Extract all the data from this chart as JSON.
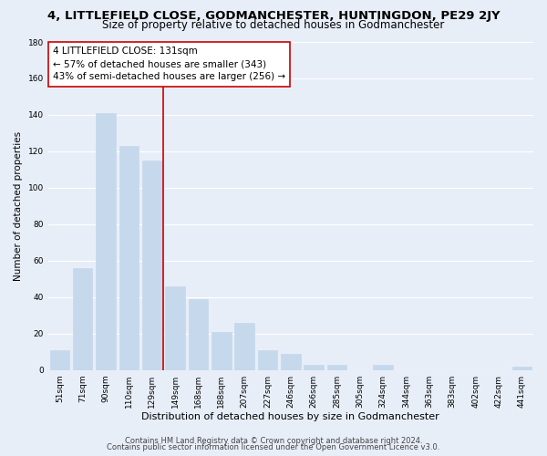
{
  "title": "4, LITTLEFIELD CLOSE, GODMANCHESTER, HUNTINGDON, PE29 2JY",
  "subtitle": "Size of property relative to detached houses in Godmanchester",
  "xlabel": "Distribution of detached houses by size in Godmanchester",
  "ylabel": "Number of detached properties",
  "categories": [
    "51sqm",
    "71sqm",
    "90sqm",
    "110sqm",
    "129sqm",
    "149sqm",
    "168sqm",
    "188sqm",
    "207sqm",
    "227sqm",
    "246sqm",
    "266sqm",
    "285sqm",
    "305sqm",
    "324sqm",
    "344sqm",
    "363sqm",
    "383sqm",
    "402sqm",
    "422sqm",
    "441sqm"
  ],
  "values": [
    11,
    56,
    141,
    123,
    115,
    46,
    39,
    21,
    26,
    11,
    9,
    3,
    3,
    0,
    3,
    0,
    0,
    0,
    0,
    0,
    2
  ],
  "bar_color": "#c5d8ec",
  "bar_edge_color": "#c5d8ec",
  "vline_color": "#cc0000",
  "annotation_title": "4 LITTLEFIELD CLOSE: 131sqm",
  "annotation_line1": "← 57% of detached houses are smaller (343)",
  "annotation_line2": "43% of semi-detached houses are larger (256) →",
  "annotation_box_facecolor": "#ffffff",
  "annotation_box_edgecolor": "#cc0000",
  "ylim": [
    0,
    180
  ],
  "yticks": [
    0,
    20,
    40,
    60,
    80,
    100,
    120,
    140,
    160,
    180
  ],
  "footer1": "Contains HM Land Registry data © Crown copyright and database right 2024.",
  "footer2": "Contains public sector information licensed under the Open Government Licence v3.0.",
  "bg_color": "#e8eef8",
  "plot_bg_color": "#e8eef8",
  "grid_color": "#ffffff",
  "title_fontsize": 9.5,
  "subtitle_fontsize": 8.5,
  "xlabel_fontsize": 8,
  "ylabel_fontsize": 7.5,
  "tick_fontsize": 6.5,
  "annotation_fontsize": 7.5,
  "footer_fontsize": 6
}
